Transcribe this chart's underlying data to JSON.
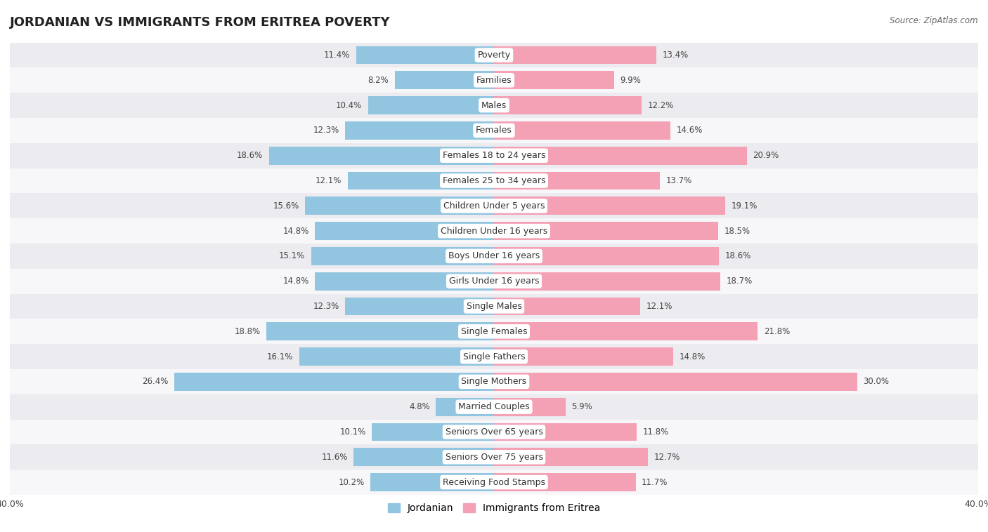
{
  "title": "JORDANIAN VS IMMIGRANTS FROM ERITREA POVERTY",
  "source": "Source: ZipAtlas.com",
  "categories": [
    "Poverty",
    "Families",
    "Males",
    "Females",
    "Females 18 to 24 years",
    "Females 25 to 34 years",
    "Children Under 5 years",
    "Children Under 16 years",
    "Boys Under 16 years",
    "Girls Under 16 years",
    "Single Males",
    "Single Females",
    "Single Fathers",
    "Single Mothers",
    "Married Couples",
    "Seniors Over 65 years",
    "Seniors Over 75 years",
    "Receiving Food Stamps"
  ],
  "jordanian": [
    11.4,
    8.2,
    10.4,
    12.3,
    18.6,
    12.1,
    15.6,
    14.8,
    15.1,
    14.8,
    12.3,
    18.8,
    16.1,
    26.4,
    4.8,
    10.1,
    11.6,
    10.2
  ],
  "eritrea": [
    13.4,
    9.9,
    12.2,
    14.6,
    20.9,
    13.7,
    19.1,
    18.5,
    18.6,
    18.7,
    12.1,
    21.8,
    14.8,
    30.0,
    5.9,
    11.8,
    12.7,
    11.7
  ],
  "jordanian_color": "#92c5e0",
  "eritrea_color": "#f4a0b5",
  "background_row_odd": "#ebebf0",
  "background_row_even": "#f7f7fa",
  "xlim": 40.0,
  "bar_height": 0.72,
  "legend_jordanian": "Jordanian",
  "legend_eritrea": "Immigrants from Eritrea",
  "title_fontsize": 13,
  "label_fontsize": 9,
  "value_fontsize": 8.5,
  "axis_label_fontsize": 9
}
